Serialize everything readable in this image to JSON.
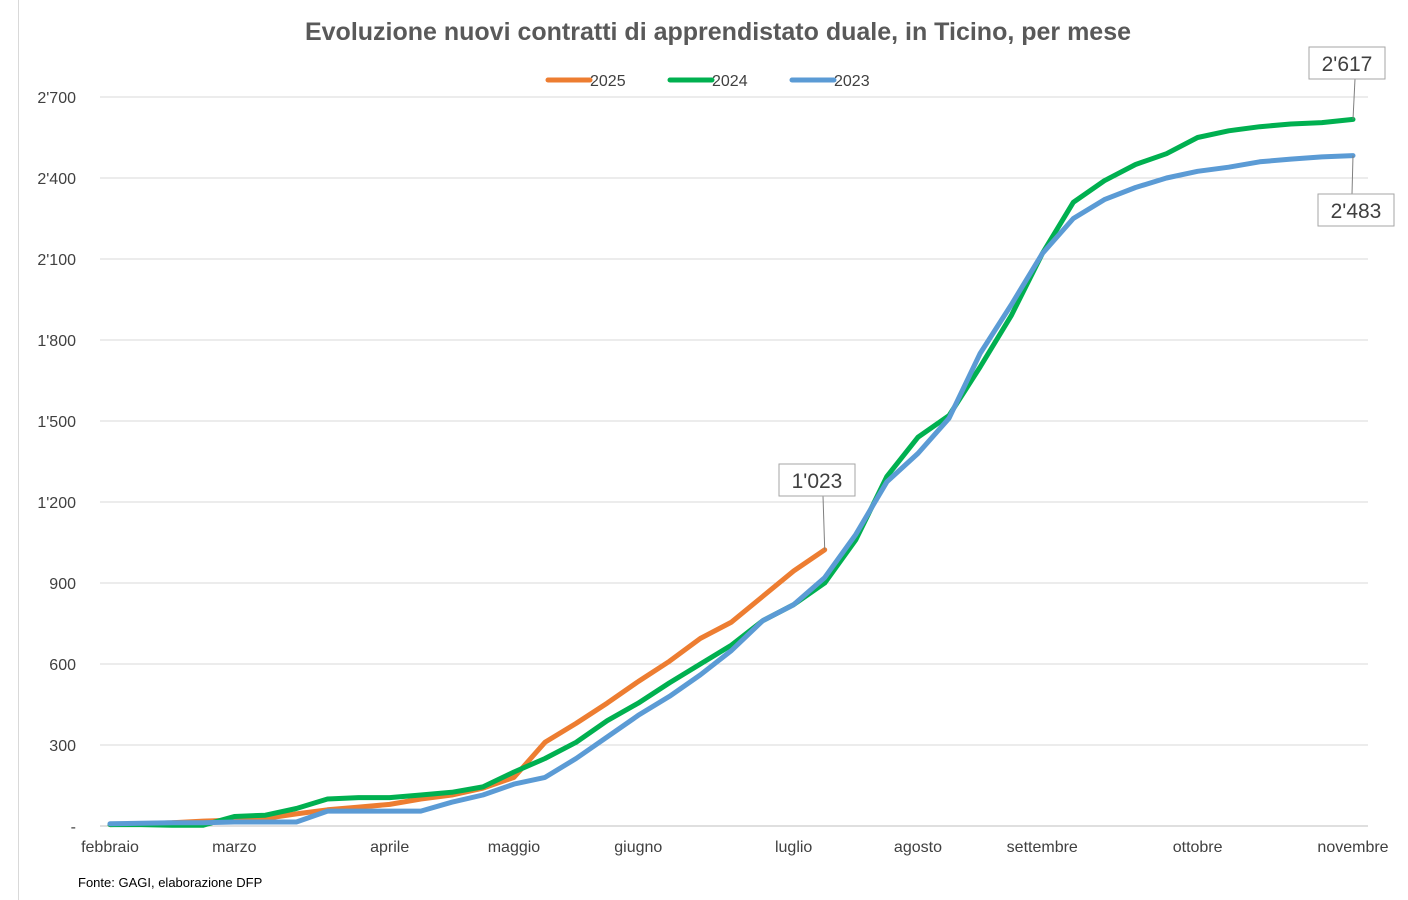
{
  "chart_data": {
    "type": "line",
    "title": "Evoluzione nuovi contratti di apprendistato duale, in Ticino, per mese",
    "source": "Fonte: GAGI, elaborazione DFP",
    "ylim": [
      0,
      2700
    ],
    "yticks": [
      0,
      300,
      600,
      900,
      1200,
      1500,
      1800,
      2100,
      2400,
      2700
    ],
    "ytick_labels": [
      "-",
      "300",
      "600",
      "900",
      "1'200",
      "1'500",
      "1'800",
      "2'100",
      "2'400",
      "2'700"
    ],
    "xlim": [
      0,
      40
    ],
    "x_tick_labels": [
      {
        "label": "febbraio",
        "x": 0
      },
      {
        "label": "marzo",
        "x": 4
      },
      {
        "label": "aprile",
        "x": 9
      },
      {
        "label": "maggio",
        "x": 13
      },
      {
        "label": "giugno",
        "x": 17
      },
      {
        "label": "luglio",
        "x": 22
      },
      {
        "label": "agosto",
        "x": 26
      },
      {
        "label": "settembre",
        "x": 30
      },
      {
        "label": "ottobre",
        "x": 35
      },
      {
        "label": "novembre",
        "x": 40
      }
    ],
    "grid": true,
    "legend_position": "top-center",
    "series": [
      {
        "name": "2025",
        "color": "#ED7D31",
        "values": [
          5,
          8,
          12,
          18,
          22,
          28,
          45,
          60,
          70,
          80,
          100,
          115,
          140,
          180,
          310,
          380,
          455,
          535,
          610,
          695,
          755,
          850,
          945,
          1023
        ]
      },
      {
        "name": "2024",
        "color": "#00B050",
        "values": [
          5,
          5,
          3,
          3,
          35,
          40,
          65,
          100,
          105,
          105,
          115,
          125,
          145,
          200,
          250,
          310,
          390,
          455,
          530,
          600,
          670,
          760,
          820,
          900,
          1060,
          1295,
          1440,
          1520,
          1700,
          1890,
          2120,
          2310,
          2390,
          2450,
          2490,
          2550,
          2575,
          2590,
          2600,
          2605,
          2617
        ]
      },
      {
        "name": "2023",
        "color": "#5B9BD5",
        "values": [
          8,
          10,
          12,
          12,
          15,
          15,
          15,
          55,
          55,
          55,
          55,
          88,
          115,
          155,
          180,
          250,
          330,
          410,
          480,
          560,
          650,
          760,
          820,
          920,
          1080,
          1275,
          1380,
          1510,
          1750,
          1930,
          2120,
          2250,
          2320,
          2365,
          2400,
          2425,
          2440,
          2460,
          2470,
          2478,
          2483
        ]
      }
    ],
    "annotations": [
      {
        "series": "2025",
        "x": 23,
        "label": "1'023"
      },
      {
        "series": "2024",
        "x": 40,
        "label": "2'617"
      },
      {
        "series": "2023",
        "x": 40,
        "label": "2'483"
      }
    ]
  }
}
